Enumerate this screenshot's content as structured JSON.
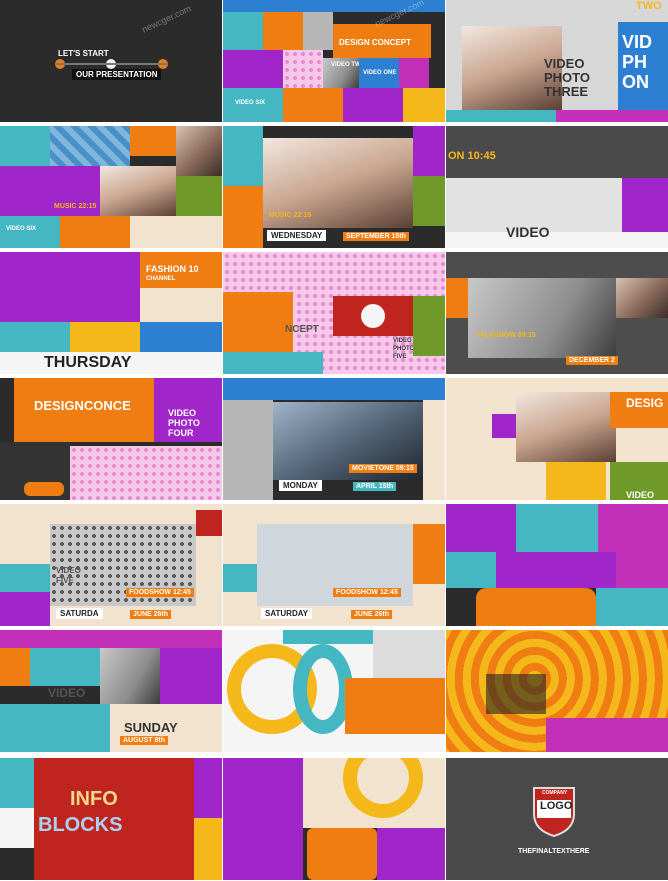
{
  "watermark": "newcger.com",
  "tiles": {
    "t1": {
      "line1": "LET'S START",
      "line2": "OUR PRESENTATION"
    },
    "t2": {
      "title": "DESIGN CONCEPT",
      "v1": "VIDEO TWO",
      "v2": "VIDEO ONE",
      "v3": "VIDEO SIX"
    },
    "t3": {
      "top": "TWO",
      "big1": "VIDEO",
      "big2": "PHOTO",
      "big3": "THREE",
      "side1": "VID",
      "side2": "PH",
      "side3": "ON"
    },
    "t4": {
      "show": "MUSIC 22:15",
      "side": "VIDEO SIX"
    },
    "t5": {
      "show": "MUSIC 22:15",
      "day": "WEDNESDAY",
      "date": "SEPTEMBER 15th"
    },
    "t6": {
      "time": "ON 10:45",
      "big": "VIDEO"
    },
    "t7": {
      "title": "FASHION 10",
      "channel": "CHANNEL",
      "day": "THURSDAY"
    },
    "t8": {
      "word": "NCEPT",
      "v1": "VIDEO",
      "v2": "PHOTO",
      "v3": "FIVE"
    },
    "t9": {
      "show": "TALKSHOW 09:15",
      "date": "DECEMBER 2"
    },
    "t10": {
      "title": "DESIGNCONCE",
      "v1": "VIDEO",
      "v2": "PHOTO",
      "v3": "FOUR"
    },
    "t11": {
      "show": "MOVIETONE 09:15",
      "day": "MONDAY",
      "date": "APRIL 15th"
    },
    "t12": {
      "title": "DESIG",
      "v": "VIDEO"
    },
    "t13": {
      "show": "FOODSHOW 12:45",
      "day": "SATURDA",
      "date": "JUNE 26th",
      "v1": "VIDEO",
      "v2": "FIVE"
    },
    "t14": {
      "show": "FOODSHOW 12:45",
      "day": "SATURDAY",
      "date": "JUNE 26th"
    },
    "t16": {
      "day": "SUNDAY",
      "date": "AUGUST 8th",
      "v1": "VIDEO"
    },
    "t19": {
      "line1": "INFO",
      "line2": "BLOCKS"
    },
    "t21": {
      "company": "COMPANY",
      "logo": "LOGO",
      "final": "THEFINALTEXTHERE"
    }
  }
}
